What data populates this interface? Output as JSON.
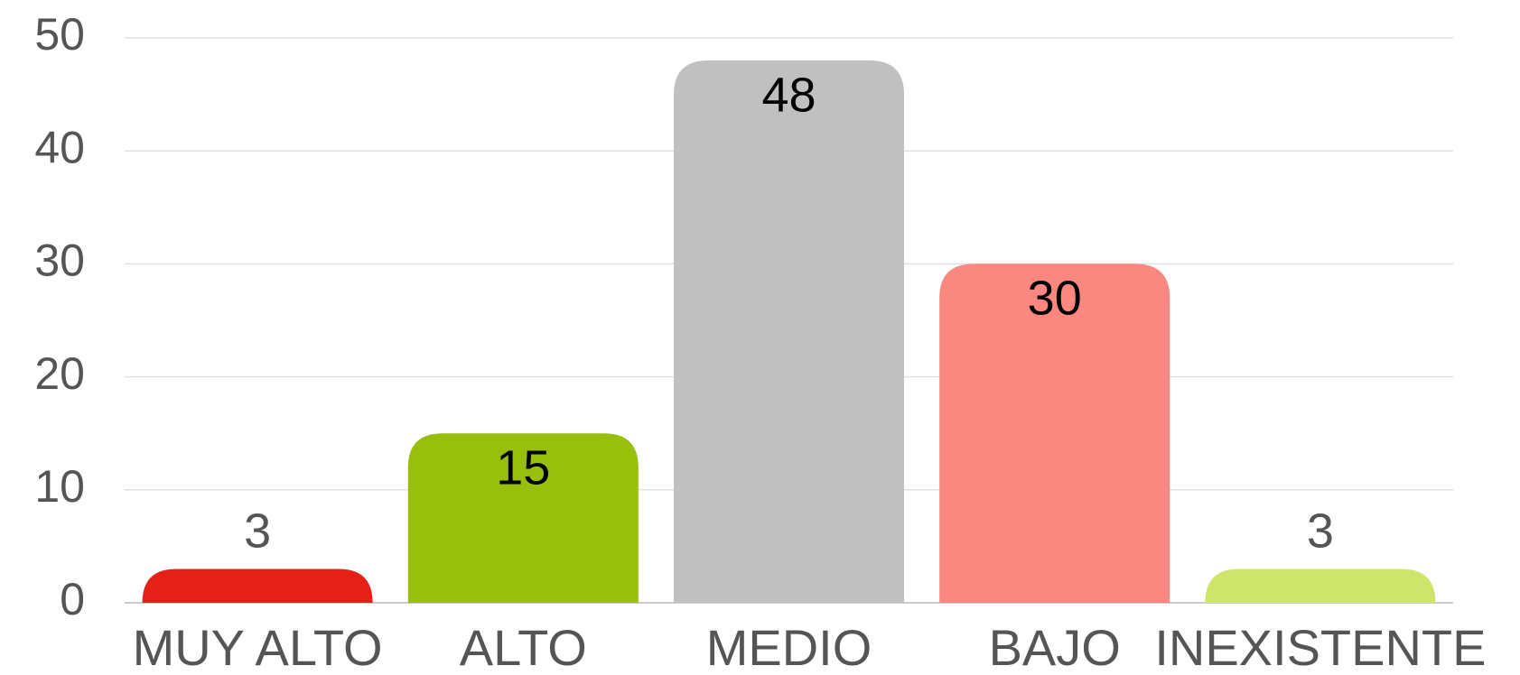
{
  "chart_data": {
    "type": "bar",
    "categories": [
      "MUY ALTO",
      "ALTO",
      "MEDIO",
      "BAJO",
      "INEXISTENTE"
    ],
    "values": [
      3,
      15,
      48,
      30,
      3
    ],
    "colors": [
      "#e52019",
      "#99bf0d",
      "#c0c0c0",
      "#fb8781",
      "#cce56a"
    ],
    "ylim": [
      0,
      50
    ],
    "yticks": [
      0,
      10,
      20,
      30,
      40,
      50
    ],
    "grid": true
  }
}
